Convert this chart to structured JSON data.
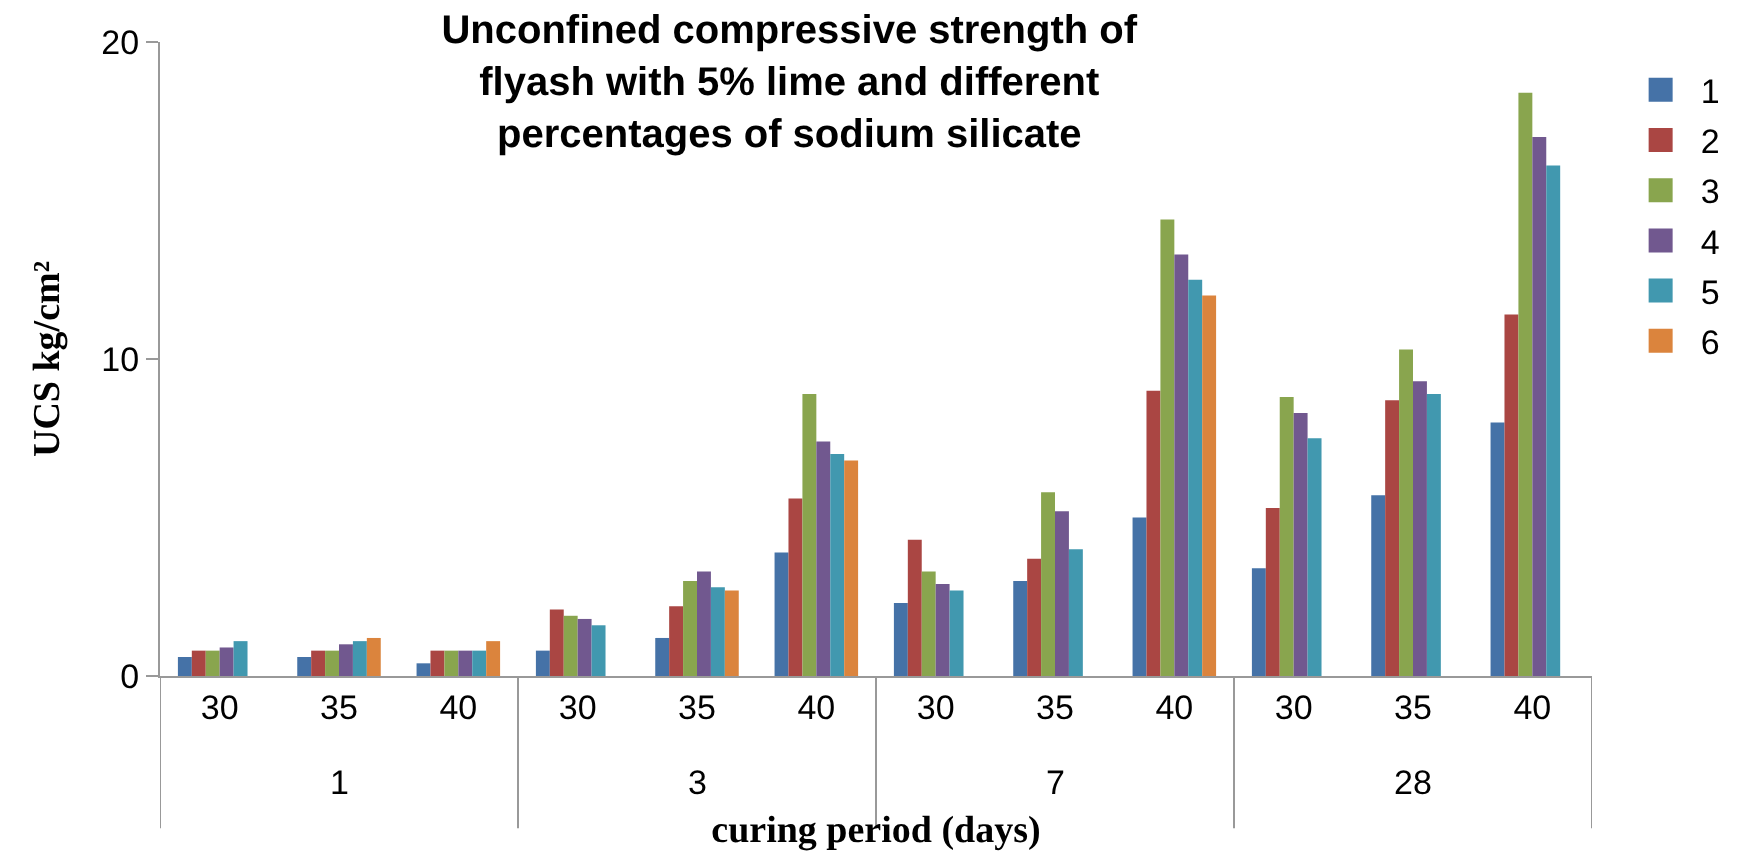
{
  "chart_data": {
    "type": "bar",
    "title": "Unconfined compressive strength of flyash with 5% lime and different percentages of sodium silicate",
    "xlabel": "curing period (days)",
    "ylabel": "UCS kg/cm²",
    "categories": [
      "30",
      "35",
      "40",
      "30",
      "35",
      "40",
      "30",
      "35",
      "40",
      "30",
      "35",
      "40"
    ],
    "annotations": [
      "1",
      "3",
      "7",
      "28"
    ],
    "series": [
      {
        "name": "1",
        "color": "#4572a7",
        "values": [
          0.6,
          0.6,
          0.4,
          0.8,
          1.2,
          3.9,
          2.3,
          3.0,
          5.0,
          3.4,
          5.7,
          8.0
        ]
      },
      {
        "name": "2",
        "color": "#aa4643",
        "values": [
          0.8,
          0.8,
          0.8,
          2.1,
          2.2,
          5.6,
          4.3,
          3.7,
          9.0,
          5.3,
          8.7,
          11.4
        ]
      },
      {
        "name": "3",
        "color": "#89a54e",
        "values": [
          0.8,
          0.8,
          0.8,
          1.9,
          3.0,
          8.9,
          3.3,
          5.8,
          14.4,
          8.8,
          10.3,
          18.4
        ]
      },
      {
        "name": "4",
        "color": "#71588f",
        "values": [
          0.9,
          1.0,
          0.8,
          1.8,
          3.3,
          7.4,
          2.9,
          5.2,
          13.3,
          8.3,
          9.3,
          17.0
        ]
      },
      {
        "name": "5",
        "color": "#4198af",
        "values": [
          1.1,
          1.1,
          0.8,
          1.6,
          2.8,
          7.0,
          2.7,
          4.0,
          12.5,
          7.5,
          8.9,
          16.1
        ]
      },
      {
        "name": "6",
        "color": "#db843d",
        "values": [
          null,
          1.2,
          1.1,
          null,
          2.7,
          6.8,
          null,
          null,
          12.0,
          null,
          null,
          null
        ]
      }
    ],
    "ylim": [
      0,
      20
    ],
    "yticks": [
      0,
      10,
      20
    ],
    "legend": "right"
  }
}
